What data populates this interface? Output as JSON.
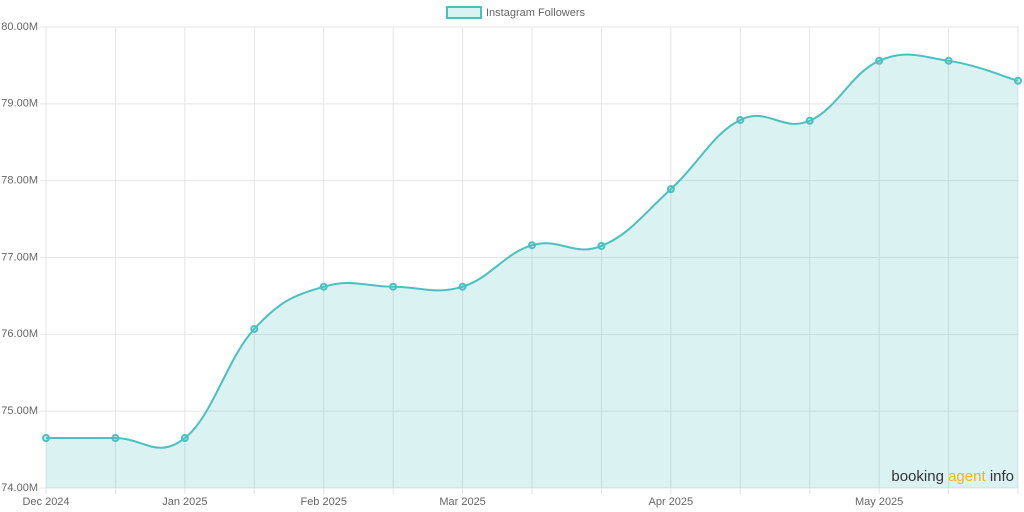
{
  "chart_data": {
    "type": "line",
    "categories": [
      "Dec 2024",
      null,
      "Jan 2025",
      null,
      "Feb 2025",
      null,
      "Mar 2025",
      null,
      null,
      "Apr 2025",
      null,
      null,
      "May 2025",
      null,
      null
    ],
    "series": [
      {
        "name": "Instagram Followers",
        "color": "#4bc0c0",
        "fill": "rgba(75,192,192,0.2)",
        "values": [
          74.65,
          74.65,
          74.65,
          76.07,
          76.62,
          76.62,
          76.62,
          77.16,
          77.15,
          77.89,
          78.79,
          78.78,
          79.56,
          79.56,
          79.3
        ]
      }
    ],
    "ylim": [
      74,
      80
    ],
    "yticks": [
      {
        "value": 74,
        "label": "74.00M"
      },
      {
        "value": 75,
        "label": "75.00M"
      },
      {
        "value": 76,
        "label": "76.00M"
      },
      {
        "value": 77,
        "label": "77.00M"
      },
      {
        "value": 78,
        "label": "78.00M"
      },
      {
        "value": 79,
        "label": "79.00M"
      },
      {
        "value": 80,
        "label": "80.00M"
      }
    ],
    "grid": true,
    "legend": "top",
    "watermark": [
      {
        "text": "booking",
        "color": "#333333"
      },
      {
        "text": "agent",
        "color": "#e8b820"
      },
      {
        "text": "info",
        "color": "#333333"
      }
    ]
  }
}
